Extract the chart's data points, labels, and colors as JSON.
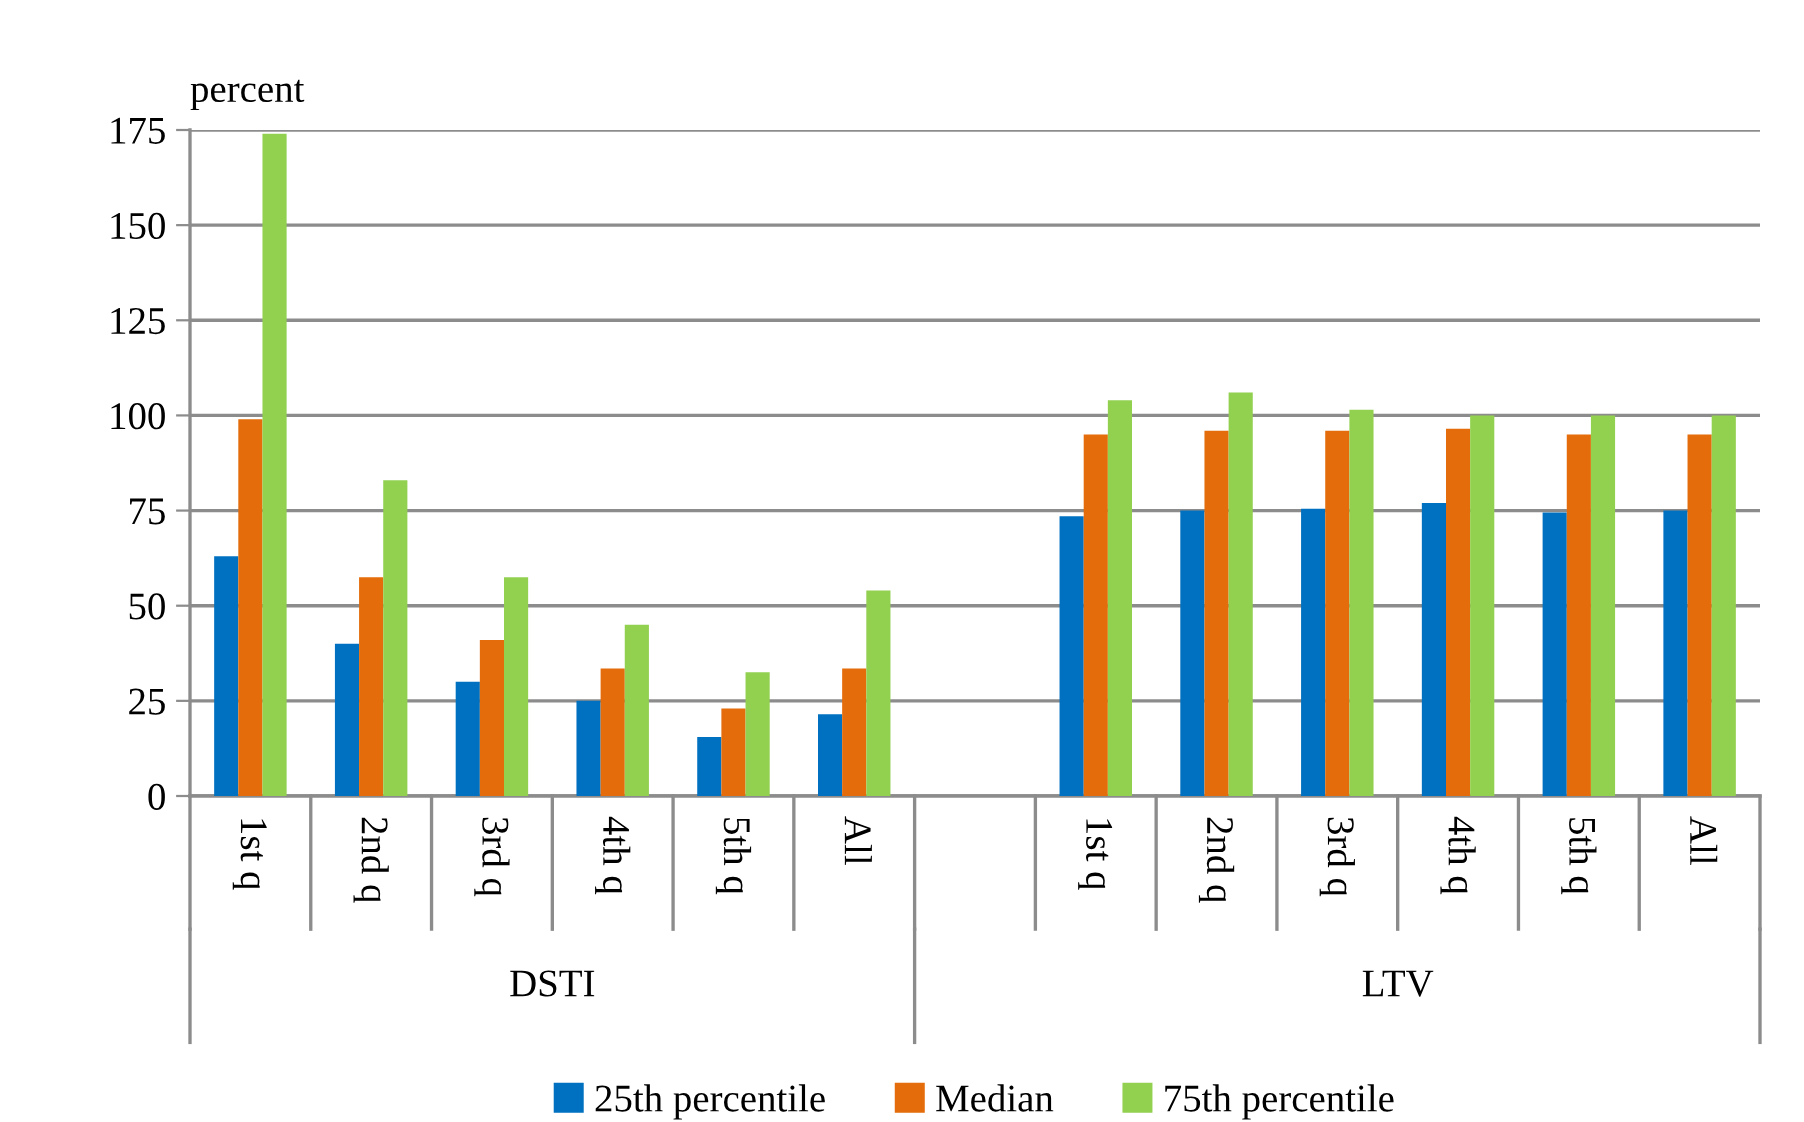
{
  "chart_data": {
    "type": "bar",
    "ylabel": "percent",
    "categories": [
      "1st q",
      "2nd q",
      "3rd q",
      "4th q",
      "5th q",
      "All",
      null,
      "1st q",
      "2nd q",
      "3rd q",
      "4th q",
      "5th q",
      "All"
    ],
    "series": [
      {
        "name": "25th percentile",
        "color": "#0070c0",
        "values": [
          63,
          40,
          30,
          25,
          15.5,
          21.5,
          null,
          73.5,
          75,
          75.5,
          77,
          74.5,
          75
        ]
      },
      {
        "name": "Median",
        "color": "#e46c0a",
        "values": [
          99,
          57.5,
          41,
          33.5,
          23,
          33.5,
          null,
          95,
          96,
          96,
          96.5,
          95,
          95
        ]
      },
      {
        "name": "75th percentile",
        "color": "#92d050",
        "values": [
          174,
          83,
          57.5,
          45,
          32.5,
          54,
          null,
          104,
          106,
          101.5,
          100,
          100,
          100
        ]
      }
    ],
    "ylim": [
      0,
      175
    ],
    "yticks": [
      0,
      25,
      50,
      75,
      100,
      125,
      150,
      175
    ],
    "grid": "y",
    "legend": "bottom",
    "annotations": [
      "DSTI",
      "LTV"
    ]
  }
}
